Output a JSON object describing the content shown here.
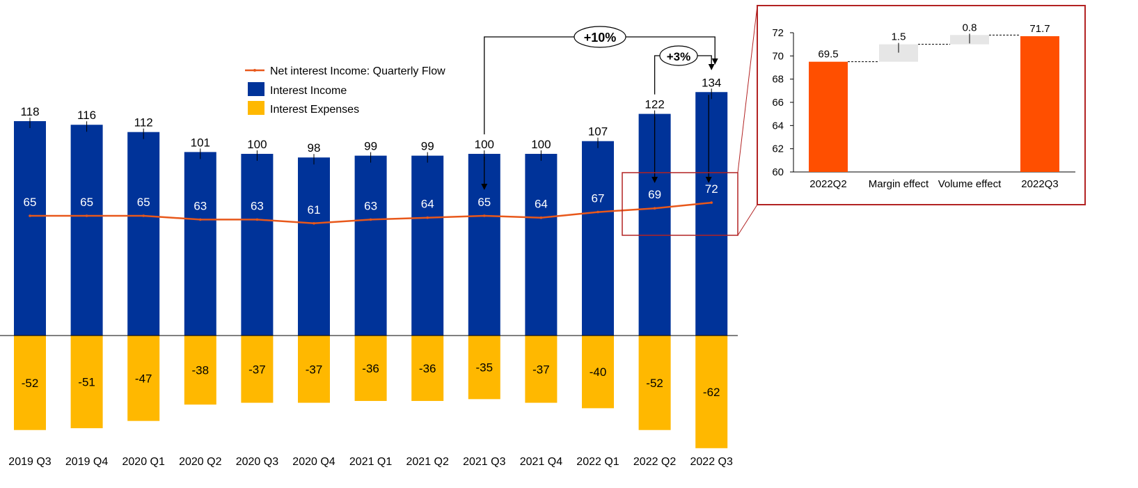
{
  "chart_data": [
    {
      "type": "bar",
      "categories": [
        "2019 Q3",
        "2019 Q4",
        "2020 Q1",
        "2020 Q2",
        "2020 Q3",
        "2020 Q4",
        "2021 Q1",
        "2021 Q2",
        "2021 Q3",
        "2021 Q4",
        "2022 Q1",
        "2022 Q2",
        "2022 Q3"
      ],
      "series": [
        {
          "name": "Interest Income",
          "color": "#003399",
          "values": [
            118,
            116,
            112,
            101,
            100,
            98,
            99,
            99,
            100,
            100,
            107,
            122,
            134
          ]
        },
        {
          "name": "Interest Expenses",
          "color": "#FFB800",
          "values": [
            -52,
            -51,
            -47,
            -38,
            -37,
            -37,
            -36,
            -36,
            -35,
            -37,
            -40,
            -52,
            -62
          ]
        },
        {
          "name": "Net interest Income: Quarterly Flow",
          "type": "line",
          "color": "#E8581B",
          "values": [
            65,
            65,
            65,
            63,
            63,
            61,
            63,
            64,
            65,
            64,
            67,
            69,
            72
          ]
        }
      ],
      "legend_position": "top-center",
      "annotations": [
        {
          "text": "+10%",
          "from": "2021 Q3",
          "to": "2022 Q3"
        },
        {
          "text": "+3%",
          "from": "2022 Q2",
          "to": "2022 Q3"
        }
      ],
      "ylim": [
        -65,
        140
      ],
      "grid": false
    },
    {
      "type": "waterfall",
      "categories": [
        "2022Q2",
        "Margin effect",
        "Volume effect",
        "2022Q3"
      ],
      "values": [
        69.5,
        1.5,
        0.8,
        71.7
      ],
      "labels": [
        "69.5",
        "1.5",
        "0.8",
        "71.7"
      ],
      "kinds": [
        "total",
        "delta",
        "delta",
        "total"
      ],
      "colors": {
        "total": "#FF4F00",
        "delta": "#E6E6E6"
      },
      "ylim": [
        60,
        72
      ],
      "yticks": [
        60,
        62,
        64,
        66,
        68,
        70,
        72
      ],
      "grid": false
    }
  ]
}
